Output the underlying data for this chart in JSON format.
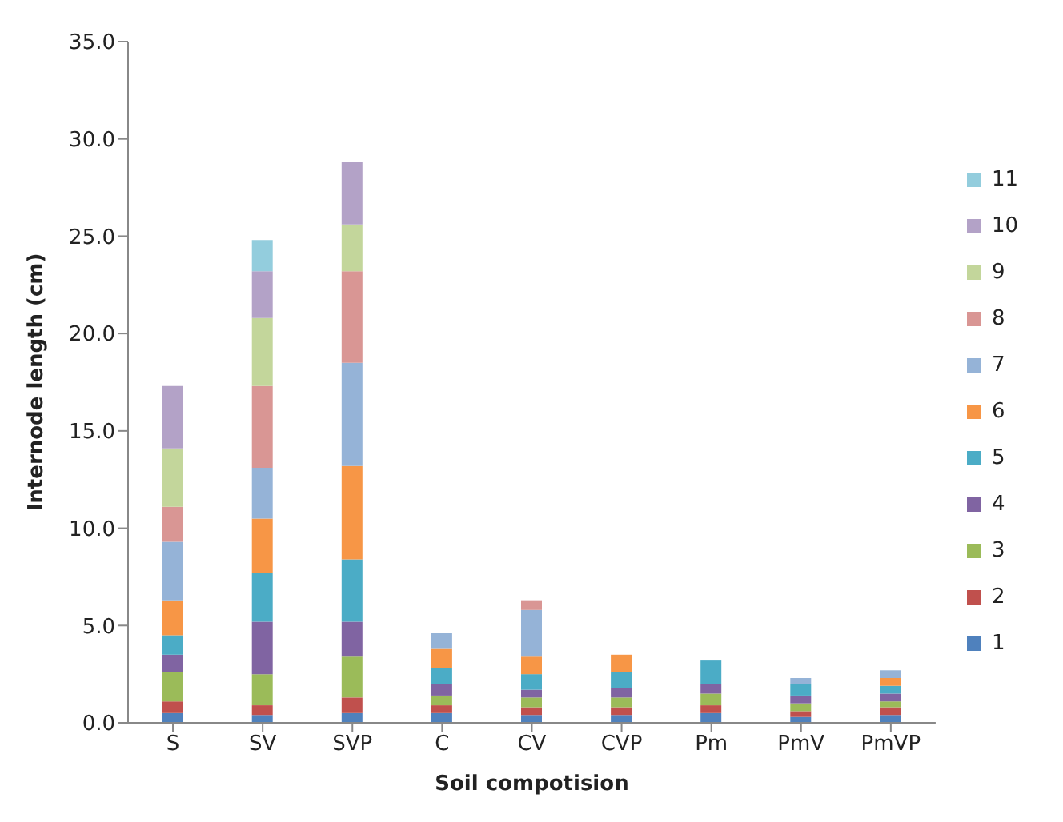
{
  "chart_data": {
    "type": "bar",
    "stacked": true,
    "xlabel": "Soil compotision",
    "ylabel": "Internode length (cm)",
    "categories": [
      "S",
      "SV",
      "SVP",
      "C",
      "CV",
      "CVP",
      "Pm",
      "PmV",
      "PmVP"
    ],
    "ylim": [
      0,
      35
    ],
    "yticks": [
      {
        "value": 0,
        "label": "0.0"
      },
      {
        "value": 5,
        "label": "5.0"
      },
      {
        "value": 10,
        "label": "10.0"
      },
      {
        "value": 15,
        "label": "15.0"
      },
      {
        "value": 20,
        "label": "20.0"
      },
      {
        "value": 25,
        "label": "25.0"
      },
      {
        "value": 30,
        "label": "30.0"
      },
      {
        "value": 35,
        "label": "35.0"
      }
    ],
    "grid": false,
    "legend": "right",
    "series": [
      {
        "name": "1",
        "color": "#4f81bd",
        "values": [
          0.5,
          0.4,
          0.5,
          0.5,
          0.4,
          0.4,
          0.5,
          0.3,
          0.4
        ]
      },
      {
        "name": "2",
        "color": "#c0504d",
        "values": [
          0.6,
          0.5,
          0.8,
          0.4,
          0.4,
          0.4,
          0.4,
          0.3,
          0.4
        ]
      },
      {
        "name": "3",
        "color": "#9bbb59",
        "values": [
          1.5,
          1.6,
          2.1,
          0.5,
          0.5,
          0.5,
          0.6,
          0.4,
          0.3
        ]
      },
      {
        "name": "4",
        "color": "#8064a2",
        "values": [
          0.9,
          2.7,
          1.8,
          0.6,
          0.4,
          0.5,
          0.5,
          0.4,
          0.4
        ]
      },
      {
        "name": "5",
        "color": "#4bacc6",
        "values": [
          1.0,
          2.5,
          3.2,
          0.8,
          0.8,
          0.8,
          1.2,
          0.6,
          0.4
        ]
      },
      {
        "name": "6",
        "color": "#f79646",
        "values": [
          1.8,
          2.8,
          4.8,
          1.0,
          0.9,
          0.9,
          null,
          null,
          0.4
        ]
      },
      {
        "name": "7",
        "color": "#95b3d7",
        "values": [
          3.0,
          2.6,
          5.3,
          0.8,
          2.4,
          null,
          null,
          0.3,
          0.4
        ]
      },
      {
        "name": "8",
        "color": "#d99694",
        "values": [
          1.8,
          4.2,
          4.7,
          null,
          0.5,
          null,
          null,
          null,
          null
        ]
      },
      {
        "name": "9",
        "color": "#c3d69b",
        "values": [
          3.0,
          3.5,
          2.4,
          null,
          null,
          null,
          null,
          null,
          null
        ]
      },
      {
        "name": "10",
        "color": "#b3a2c7",
        "values": [
          3.2,
          2.4,
          3.2,
          null,
          null,
          null,
          null,
          null,
          null
        ]
      },
      {
        "name": "11",
        "color": "#93cddd",
        "values": [
          null,
          1.6,
          null,
          null,
          null,
          null,
          null,
          null,
          null
        ]
      }
    ]
  }
}
